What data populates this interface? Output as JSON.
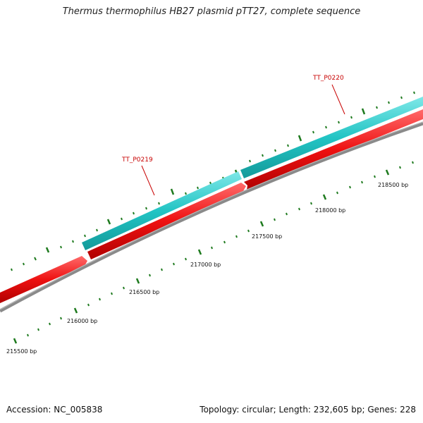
{
  "title": "Thermus thermophilus HB27 plasmid pTT27, complete sequence",
  "footer": {
    "accession": "Accession: NC_005838",
    "summary": "Topology: circular; Length: 232,605 bp; Genes: 228"
  },
  "colors": {
    "forward_strand": "#2ac9c9",
    "reverse_strand": "#ee1111",
    "backbone": "#8a8a8a",
    "ticks": "#1e7a1e",
    "gene_label": "#c80000"
  },
  "ruler": {
    "labels": [
      "215500 bp",
      "216000 bp",
      "216500 bp",
      "217000 bp",
      "217500 bp",
      "218000 bp",
      "218500 bp"
    ]
  },
  "genes": [
    {
      "label": "TT_P0219",
      "strand": "forward"
    },
    {
      "label": "TT_P0220",
      "strand": "forward"
    }
  ]
}
